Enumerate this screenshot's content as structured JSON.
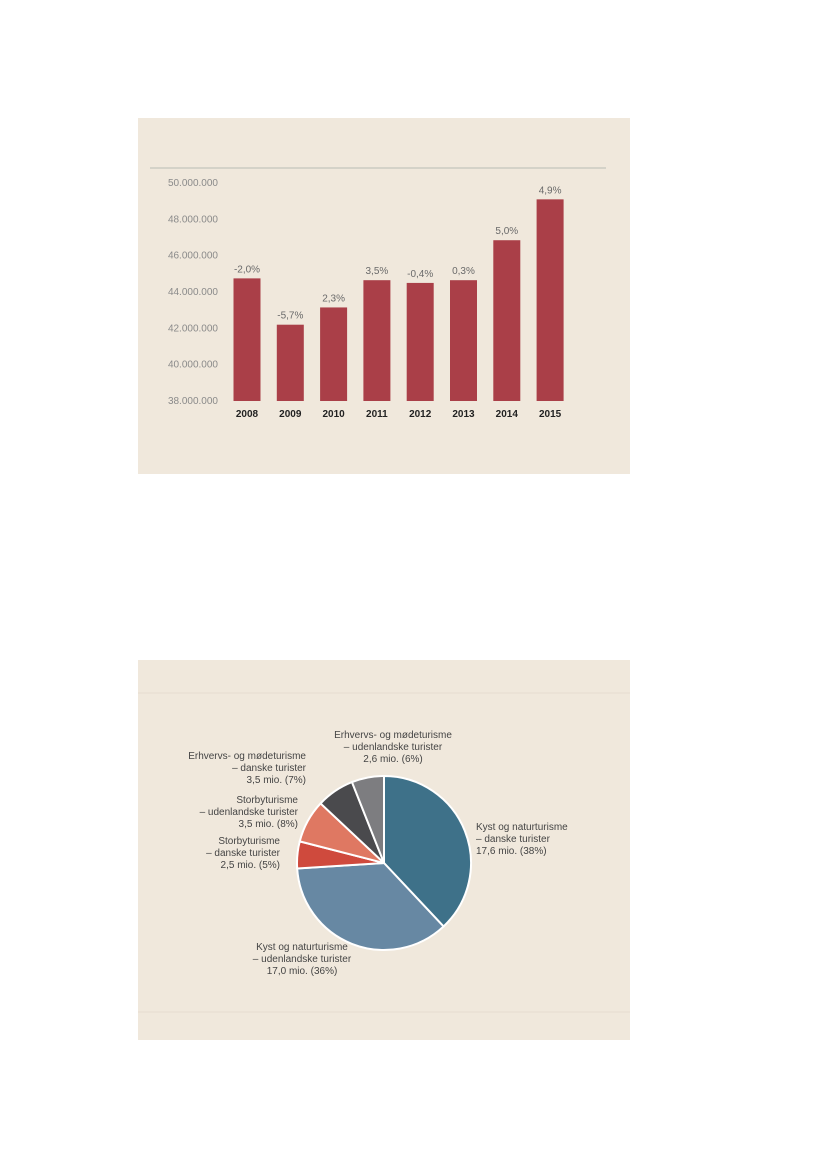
{
  "chart_data": [
    {
      "type": "bar",
      "categories": [
        "2008",
        "2009",
        "2010",
        "2011",
        "2012",
        "2013",
        "2014",
        "2015"
      ],
      "values": [
        44750000,
        42200000,
        43150000,
        44650000,
        44500000,
        44650000,
        46850000,
        49100000
      ],
      "data_labels": [
        "-2,0%",
        "-5,7%",
        "2,3%",
        "3,5%",
        "-0,4%",
        "0,3%",
        "5,0%",
        "4,9%"
      ],
      "yticks": [
        "38.000.000",
        "40.000.000",
        "42.000.000",
        "44.000.000",
        "46.000.000",
        "48.000.000",
        "50.000.000"
      ],
      "ylim": [
        38000000,
        50000000
      ],
      "color": "#aa3f48",
      "grid": false
    },
    {
      "type": "pie",
      "slices": [
        {
          "value": 38,
          "color": "#3e7189",
          "label": [
            "Kyst og naturturisme",
            "– danske turister",
            "17,6 mio. (38%)"
          ]
        },
        {
          "value": 36,
          "color": "#6788a3",
          "label": [
            "Kyst og naturturisme",
            "– udenlandske turister",
            "17,0 mio. (36%)"
          ]
        },
        {
          "value": 5,
          "color": "#cf4a3d",
          "label": [
            "Storbyturisme",
            "– danske turister",
            "2,5 mio. (5%)"
          ]
        },
        {
          "value": 8,
          "color": "#df7862",
          "label": [
            "Storbyturisme",
            "– udenlandske turister",
            "3,5 mio. (8%)"
          ]
        },
        {
          "value": 7,
          "color": "#4a4a4d",
          "label": [
            "Erhvervs- og mødeturisme",
            "– danske turister",
            "3,5 mio. (7%)"
          ]
        },
        {
          "value": 6,
          "color": "#7d7d80",
          "label": [
            "Erhvervs- og mødeturisme",
            "– udenlandske turister",
            "2,6 mio. (6%)"
          ]
        }
      ]
    }
  ]
}
